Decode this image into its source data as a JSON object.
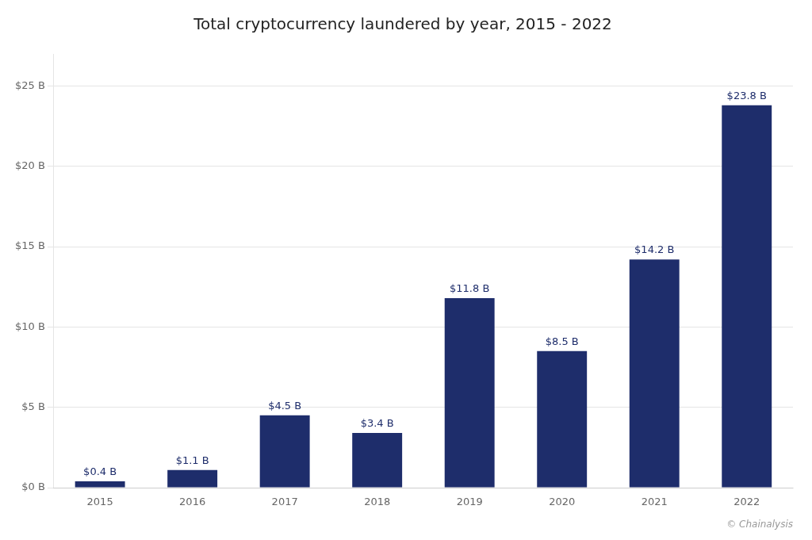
{
  "chart_data": {
    "type": "bar",
    "title": "Total cryptocurrency laundered by year, 2015 - 2022",
    "categories": [
      "2015",
      "2016",
      "2017",
      "2018",
      "2019",
      "2020",
      "2021",
      "2022"
    ],
    "values": [
      0.4,
      1.1,
      4.5,
      3.4,
      11.8,
      8.5,
      14.2,
      23.8
    ],
    "value_labels": [
      "$0.4 B",
      "$1.1 B",
      "$4.5 B",
      "$3.4 B",
      "$11.8 B",
      "$8.5 B",
      "$14.2 B",
      "$23.8 B"
    ],
    "color": "#1e2d6b",
    "ylim": [
      0,
      27
    ],
    "yticks": [
      {
        "value": 0,
        "label": "$0 B"
      },
      {
        "value": 5,
        "label": "$5 B"
      },
      {
        "value": 10,
        "label": "$10 B"
      },
      {
        "value": 15,
        "label": "$15 B"
      },
      {
        "value": 20,
        "label": "$20 B"
      },
      {
        "value": 25,
        "label": "$25 B"
      }
    ],
    "grid": true,
    "data_labels": true,
    "annotations": [
      "© Chainalysis"
    ]
  }
}
